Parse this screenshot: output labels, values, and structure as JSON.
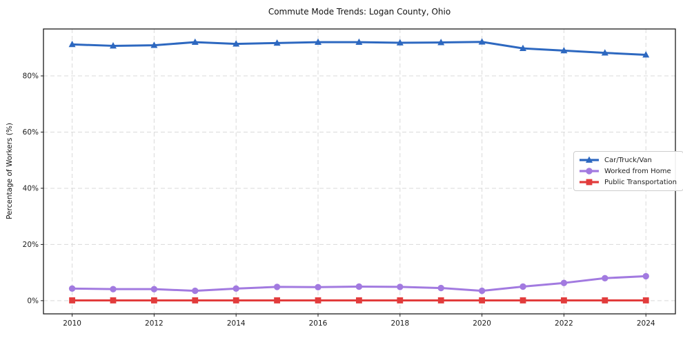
{
  "figure": {
    "title": "Commute Mode Trends: Logan County, Ohio",
    "ylabel": "Percentage of Workers (%)"
  },
  "chart_data": {
    "type": "line",
    "title": "Commute Mode Trends: Logan County, Ohio",
    "xlabel": "",
    "ylabel": "Percentage of Workers (%)",
    "x": [
      2010,
      2011,
      2012,
      2013,
      2014,
      2015,
      2016,
      2017,
      2018,
      2019,
      2020,
      2021,
      2022,
      2023,
      2024
    ],
    "series": [
      {
        "name": "Car/Truck/Van",
        "color": "#2d68c0",
        "marker": "triangle",
        "values": [
          91.2,
          90.7,
          90.9,
          92.0,
          91.4,
          91.7,
          92.0,
          92.0,
          91.8,
          91.9,
          92.1,
          89.8,
          89.0,
          88.2,
          87.5
        ]
      },
      {
        "name": "Worked from Home",
        "color": "#a27ae0",
        "marker": "circle",
        "values": [
          4.3,
          4.1,
          4.1,
          3.5,
          4.3,
          4.9,
          4.8,
          5.0,
          4.9,
          4.5,
          3.5,
          5.0,
          6.3,
          8.0,
          8.7
        ]
      },
      {
        "name": "Public Transportation",
        "color": "#e23c3c",
        "marker": "square",
        "values": [
          0.1,
          0.1,
          0.1,
          0.1,
          0.1,
          0.1,
          0.1,
          0.1,
          0.1,
          0.1,
          0.1,
          0.1,
          0.1,
          0.1,
          0.1
        ]
      }
    ],
    "xticks": [
      2010,
      2012,
      2014,
      2016,
      2018,
      2020,
      2022,
      2024
    ],
    "ytick_labels": [
      "0%",
      "20%",
      "40%",
      "60%",
      "80%"
    ],
    "ytick_values": [
      0,
      20,
      40,
      60,
      80
    ],
    "xlim": [
      2009.3,
      2024.72
    ],
    "ylim": [
      -4.7,
      96.7
    ],
    "grid": true,
    "grid_style": "dashed",
    "legend_position": "center-right",
    "colors": {
      "grid": "#d9d9d9",
      "axis": "#1a1a1a",
      "tick_text": "#1a1a1a",
      "background": "#ffffff",
      "legend_border": "#cccccc"
    }
  }
}
